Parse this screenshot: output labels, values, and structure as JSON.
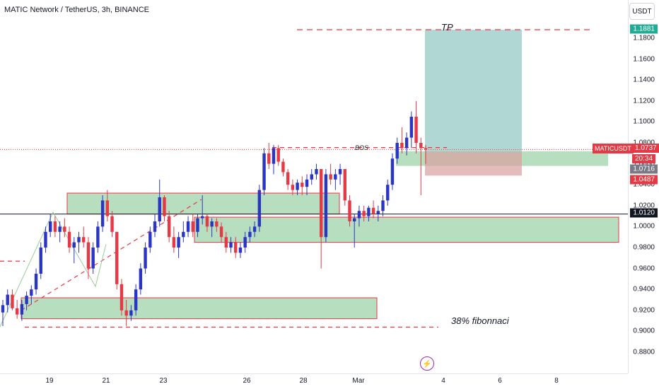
{
  "header": {
    "symbol_title": "MATIC Network / TetherUS, 3h, BINANCE",
    "currency_button": "USDT"
  },
  "colors": {
    "up": "#2a35c4",
    "down": "#e53945",
    "zone_fill": "#7cc48a",
    "zone_border": "#e53945",
    "tp_fill": "#8ec6c1",
    "sl_fill": "#d8a0a0",
    "dashed": "#e53945",
    "accent_green": "#22ab94"
  },
  "chart_data": {
    "type": "candlestick",
    "title": "MATIC Network / TetherUS, 3h, BINANCE",
    "ylim": [
      0.87,
      1.2
    ],
    "y_ticks": [
      "0.8800",
      "0.9000",
      "0.9200",
      "0.9400",
      "0.9600",
      "0.9800",
      "1.0000",
      "1.0200",
      "1.0400",
      "1.0600",
      "1.0800",
      "1.1000",
      "1.1200",
      "1.1400",
      "1.1600",
      "1.1800"
    ],
    "x_ticks": [
      "19",
      "21",
      "23",
      "26",
      "28",
      "Mar",
      "4",
      "6",
      "8"
    ],
    "series": [
      {
        "name": "MATICUSDT",
        "candles_ohlc": [
          [
            0.918,
            0.93,
            0.905,
            0.925
          ],
          [
            0.925,
            0.94,
            0.918,
            0.935
          ],
          [
            0.935,
            0.94,
            0.92,
            0.922
          ],
          [
            0.922,
            0.93,
            0.912,
            0.916
          ],
          [
            0.916,
            0.93,
            0.91,
            0.926
          ],
          [
            0.926,
            0.938,
            0.92,
            0.934
          ],
          [
            0.934,
            0.944,
            0.926,
            0.94
          ],
          [
            0.94,
            0.96,
            0.935,
            0.955
          ],
          [
            0.955,
            0.985,
            0.95,
            0.98
          ],
          [
            0.98,
            1.0,
            0.975,
            0.995
          ],
          [
            0.995,
            1.012,
            0.99,
            1.005
          ],
          [
            1.005,
            1.01,
            0.99,
            0.995
          ],
          [
            0.995,
            1.005,
            0.985,
            1.0
          ],
          [
            1.0,
            1.008,
            0.99,
            0.995
          ],
          [
            0.995,
            1.0,
            0.975,
            0.98
          ],
          [
            0.98,
            0.99,
            0.965,
            0.985
          ],
          [
            0.985,
            0.995,
            0.975,
            0.99
          ],
          [
            0.99,
            1.0,
            0.98,
            0.985
          ],
          [
            0.985,
            0.99,
            0.95,
            0.96
          ],
          [
            0.96,
            0.985,
            0.955,
            0.98
          ],
          [
            0.98,
            1.005,
            0.975,
            1.0
          ],
          [
            1.0,
            1.03,
            0.995,
            1.025
          ],
          [
            1.025,
            1.035,
            1.005,
            1.01
          ],
          [
            1.01,
            1.015,
            0.99,
            0.995
          ],
          [
            0.995,
            0.995,
            0.94,
            0.945
          ],
          [
            0.945,
            0.95,
            0.915,
            0.92
          ],
          [
            0.92,
            0.93,
            0.905,
            0.915
          ],
          [
            0.915,
            0.925,
            0.91,
            0.92
          ],
          [
            0.92,
            0.945,
            0.915,
            0.94
          ],
          [
            0.94,
            0.965,
            0.935,
            0.96
          ],
          [
            0.96,
            0.985,
            0.955,
            0.98
          ],
          [
            0.98,
            1.0,
            0.975,
            0.995
          ],
          [
            0.995,
            1.012,
            0.99,
            1.005
          ],
          [
            1.005,
            1.045,
            1.0,
            1.028
          ],
          [
            1.028,
            1.03,
            1.005,
            1.01
          ],
          [
            1.01,
            1.015,
            0.985,
            0.99
          ],
          [
            0.99,
            1.0,
            0.975,
            0.98
          ],
          [
            0.98,
            0.995,
            0.97,
            0.99
          ],
          [
            0.99,
            1.005,
            0.985,
            0.995
          ],
          [
            0.995,
            1.01,
            0.99,
            1.005
          ],
          [
            1.005,
            1.012,
            0.99,
            0.995
          ],
          [
            0.995,
            1.012,
            0.99,
            1.008
          ],
          [
            1.008,
            1.03,
            1.002,
            1.01
          ],
          [
            1.01,
            1.012,
            0.995,
            1.0
          ],
          [
            1.0,
            1.008,
            0.99,
            1.005
          ],
          [
            1.005,
            1.008,
            0.995,
            1.0
          ],
          [
            1.0,
            1.004,
            0.985,
            0.99
          ],
          [
            0.99,
            0.995,
            0.975,
            0.98
          ],
          [
            0.98,
            0.99,
            0.975,
            0.985
          ],
          [
            0.985,
            0.99,
            0.97,
            0.975
          ],
          [
            0.975,
            0.985,
            0.97,
            0.98
          ],
          [
            0.98,
            0.995,
            0.975,
            0.99
          ],
          [
            0.99,
            1.0,
            0.985,
            0.995
          ],
          [
            0.995,
            1.005,
            0.99,
            1.0
          ],
          [
            1.0,
            1.04,
            0.995,
            1.035
          ],
          [
            1.035,
            1.075,
            1.03,
            1.07
          ],
          [
            1.07,
            1.08,
            1.055,
            1.06
          ],
          [
            1.06,
            1.078,
            1.05,
            1.075
          ],
          [
            1.075,
            1.078,
            1.058,
            1.062
          ],
          [
            1.062,
            1.065,
            1.048,
            1.052
          ],
          [
            1.052,
            1.055,
            1.035,
            1.04
          ],
          [
            1.04,
            1.045,
            1.03,
            1.035
          ],
          [
            1.035,
            1.045,
            1.03,
            1.042
          ],
          [
            1.042,
            1.048,
            1.03,
            1.038
          ],
          [
            1.038,
            1.05,
            1.03,
            1.045
          ],
          [
            1.045,
            1.055,
            1.04,
            1.05
          ],
          [
            1.05,
            1.06,
            1.045,
            1.055
          ],
          [
            1.055,
            1.055,
            0.96,
            0.99
          ],
          [
            0.99,
            1.055,
            0.985,
            1.05
          ],
          [
            1.05,
            1.06,
            1.04,
            1.045
          ],
          [
            1.045,
            1.055,
            1.035,
            1.05
          ],
          [
            1.05,
            1.06,
            1.04,
            1.055
          ],
          [
            1.055,
            1.055,
            1.02,
            1.025
          ],
          [
            1.025,
            1.03,
            1.0,
            1.005
          ],
          [
            1.005,
            1.012,
            0.98,
            1.008
          ],
          [
            1.008,
            1.02,
            1.0,
            1.015
          ],
          [
            1.015,
            1.02,
            1.005,
            1.01
          ],
          [
            1.01,
            1.02,
            1.005,
            1.018
          ],
          [
            1.018,
            1.025,
            1.008,
            1.012
          ],
          [
            1.012,
            1.02,
            1.005,
            1.015
          ],
          [
            1.015,
            1.03,
            1.01,
            1.025
          ],
          [
            1.025,
            1.045,
            1.02,
            1.04
          ],
          [
            1.04,
            1.07,
            1.035,
            1.065
          ],
          [
            1.065,
            1.085,
            1.06,
            1.08
          ],
          [
            1.08,
            1.095,
            1.07,
            1.075
          ],
          [
            1.075,
            1.09,
            1.068,
            1.085
          ],
          [
            1.085,
            1.11,
            1.075,
            1.105
          ],
          [
            1.105,
            1.12,
            1.07,
            1.08
          ],
          [
            1.08,
            1.085,
            1.03,
            1.075
          ],
          [
            1.075,
            1.078,
            1.06,
            1.0737
          ]
        ]
      }
    ],
    "annotations": [
      {
        "label": "TP"
      },
      {
        "label": "BOS"
      },
      {
        "label": "38% fibonnaci"
      }
    ],
    "price_labels": {
      "tp": "1.1881",
      "current": "1.0737",
      "symbol": "MATICUSDT",
      "countdown": "20:34",
      "entry": "1.0716",
      "stop": "1.0487",
      "level": "1.0120"
    },
    "zones": [
      {
        "from": 1.012,
        "to": 1.032
      },
      {
        "from": 0.985,
        "to": 1.009
      },
      {
        "from": 0.912,
        "to": 0.932
      },
      {
        "from": 1.058,
        "to": 1.072
      }
    ]
  }
}
